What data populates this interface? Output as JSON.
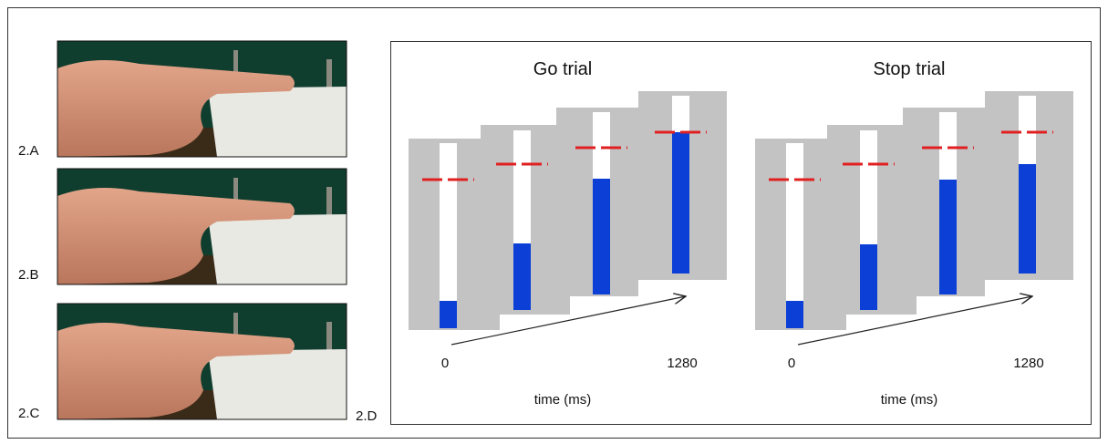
{
  "panels": {
    "a": "2.A",
    "b": "2.B",
    "c": "2.C",
    "d": "2.D"
  },
  "go_trial": {
    "title": "Go trial",
    "start": 0,
    "end": 1280,
    "axis_label": "time (ms)"
  },
  "stop_trial": {
    "title": "Stop trial",
    "start": 0,
    "end": 1280,
    "axis_label": "time (ms)"
  }
}
